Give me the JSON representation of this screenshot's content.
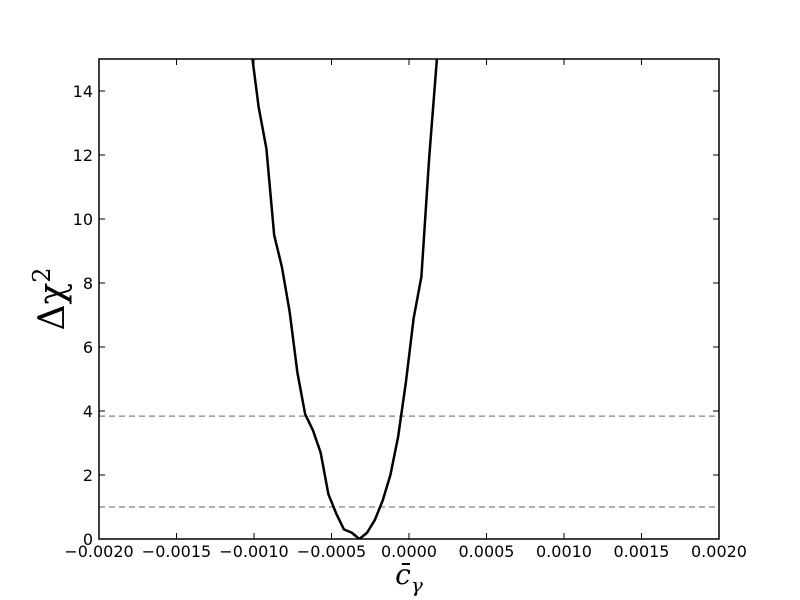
{
  "chart_data": {
    "type": "line",
    "xlabel": {
      "base": "c̄",
      "sub": "γ"
    },
    "ylabel": {
      "base": "Δχ",
      "sup": "2"
    },
    "x": [
      -0.00101,
      -0.00097,
      -0.00092,
      -0.00087,
      -0.00082,
      -0.00077,
      -0.00072,
      -0.00067,
      -0.00062,
      -0.00057,
      -0.00052,
      -0.00047,
      -0.00042,
      -0.00037,
      -0.00032,
      -0.00027,
      -0.00022,
      -0.00017,
      -0.00012,
      -7e-05,
      -2e-05,
      3e-05,
      8e-05,
      0.00013,
      0.00018
    ],
    "series": [
      {
        "color": "#000000",
        "values": [
          15,
          13.5,
          12.2,
          9.5,
          8.5,
          7.1,
          5.2,
          3.9,
          3.4,
          2.7,
          1.4,
          0.8,
          0.3,
          0.2,
          0,
          0.2,
          0.6,
          1.2,
          2.0,
          3.2,
          4.9,
          6.9,
          8.2,
          11.9,
          15
        ]
      }
    ],
    "hlines": [
      {
        "value": 1,
        "color": "#808080",
        "style": "dashed"
      },
      {
        "value": 3.84,
        "color": "#808080",
        "style": "dashed"
      }
    ],
    "xlim": [
      -0.002,
      0.002
    ],
    "xticks": [
      {
        "value": -0.002,
        "label": "−0.0020"
      },
      {
        "value": -0.0015,
        "label": "−0.0015"
      },
      {
        "value": -0.001,
        "label": "−0.0010"
      },
      {
        "value": -0.0005,
        "label": "−0.0005"
      },
      {
        "value": 0,
        "label": "0.0000"
      },
      {
        "value": 0.0005,
        "label": "0.0005"
      },
      {
        "value": 0.001,
        "label": "0.0010"
      },
      {
        "value": 0.0015,
        "label": "0.0015"
      },
      {
        "value": 0.002,
        "label": "0.0020"
      }
    ],
    "ylim": [
      0,
      15
    ],
    "yticks": [
      0,
      2,
      4,
      6,
      8,
      10,
      12,
      14
    ],
    "grid": false
  }
}
